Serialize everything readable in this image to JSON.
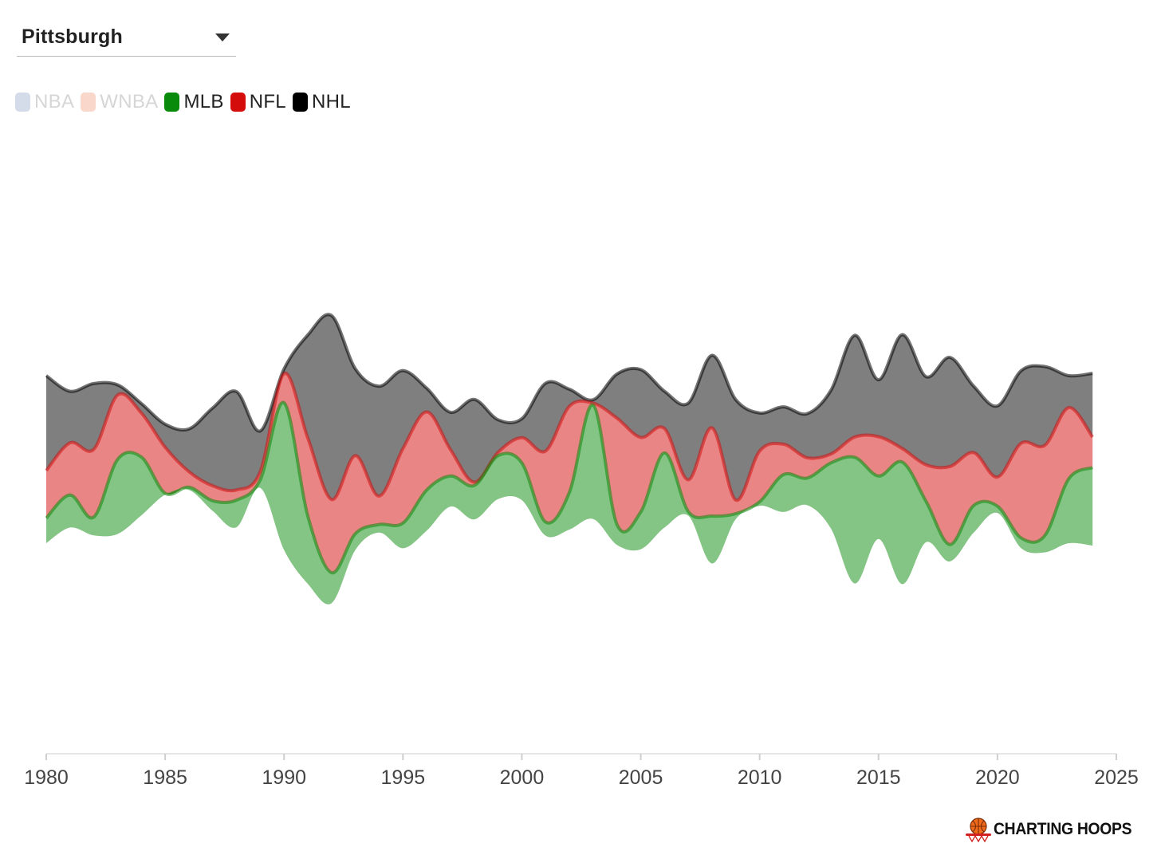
{
  "selector": {
    "value": "Pittsburgh"
  },
  "legend": [
    {
      "label": "NBA",
      "color": "#d5dce9",
      "active": false
    },
    {
      "label": "WNBA",
      "color": "#fad7cb",
      "active": false
    },
    {
      "label": "MLB",
      "color": "#0a8a0a",
      "active": true
    },
    {
      "label": "NFL",
      "color": "#d40c0c",
      "active": true
    },
    {
      "label": "NHL",
      "color": "#000000",
      "active": true
    }
  ],
  "brand": {
    "name": "CHARTING HOOPS",
    "logo_icon": "basketball-hoop-icon"
  },
  "chart_data": {
    "type": "area",
    "subtype": "streamgraph",
    "x_ticks": [
      1980,
      1985,
      1990,
      1995,
      2000,
      2005,
      2010,
      2015,
      2020,
      2025
    ],
    "xlim": [
      1980,
      2025
    ],
    "x": [
      1980,
      1981,
      1982,
      1983,
      1984,
      1985,
      1986,
      1987,
      1988,
      1989,
      1990,
      1991,
      1992,
      1993,
      1994,
      1995,
      1996,
      1997,
      1998,
      1999,
      2000,
      2001,
      2002,
      2003,
      2004,
      2005,
      2006,
      2007,
      2008,
      2009,
      2010,
      2011,
      2012,
      2013,
      2014,
      2015,
      2016,
      2017,
      2018,
      2019,
      2020,
      2021,
      2022,
      2023,
      2024
    ],
    "series": [
      {
        "name": "MLB",
        "color": "#0a8a0a",
        "values": [
          37,
          48,
          27,
          110,
          86,
          2,
          4,
          15,
          40,
          12,
          217,
          100,
          45,
          24,
          12,
          37,
          60,
          45,
          50,
          64,
          55,
          20,
          55,
          168,
          30,
          55,
          110,
          6,
          70,
          8,
          6,
          55,
          40,
          97,
          186,
          93,
          180,
          60,
          25,
          40,
          10,
          15,
          25,
          95,
          115
        ]
      },
      {
        "name": "NFL",
        "color": "#d40c0c",
        "values": [
          70,
          77,
          100,
          95,
          65,
          68,
          23,
          22,
          15,
          12,
          43,
          115,
          108,
          115,
          42,
          110,
          115,
          39,
          5,
          5,
          37,
          105,
          127,
          3,
          157,
          110,
          36,
          47,
          130,
          20,
          75,
          45,
          30,
          13,
          30,
          58,
          20,
          54,
          115,
          78,
          43,
          140,
          133,
          105,
          45
        ]
      },
      {
        "name": "NHL",
        "color": "#000000",
        "values": [
          140,
          76,
          97,
          15,
          14,
          34,
          63,
          115,
          145,
          60,
          7,
          152,
          271,
          128,
          162,
          115,
          35,
          55,
          122,
          48,
          28,
          100,
          25,
          5,
          65,
          100,
          55,
          113,
          107,
          148,
          56,
          55,
          65,
          94,
          150,
          84,
          168,
          130,
          161,
          98,
          105,
          107,
          116,
          47,
          94
        ]
      }
    ]
  }
}
